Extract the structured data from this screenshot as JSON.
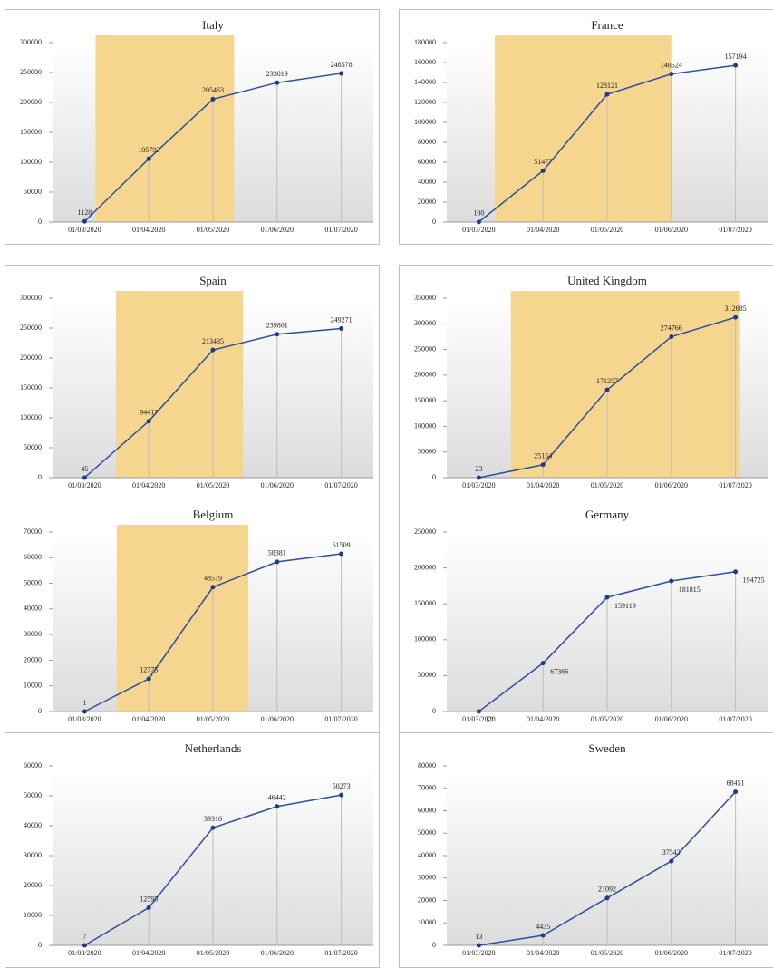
{
  "chart_data": [
    {
      "type": "line",
      "title": "Italy",
      "categories": [
        "01/03/2020",
        "01/04/2020",
        "01/05/2020",
        "01/06/2020",
        "01/07/2020"
      ],
      "values": [
        1128,
        105792,
        205463,
        233019,
        248578
      ],
      "color": "#2e4f9e",
      "ylim": [
        0,
        300000
      ],
      "yticks": [
        0,
        50000,
        100000,
        150000,
        200000,
        250000,
        300000
      ],
      "highlight": {
        "start": 0.17,
        "end": 2.33,
        "color": "#f6d58e"
      },
      "label_position": "above"
    },
    {
      "type": "line",
      "title": "France",
      "categories": [
        "01/03/2020",
        "01/04/2020",
        "01/05/2020",
        "01/06/2020",
        "01/07/2020"
      ],
      "values": [
        100,
        51477,
        128121,
        148524,
        157194
      ],
      "color": "#2e4f9e",
      "ylim": [
        0,
        180000
      ],
      "yticks": [
        0,
        20000,
        40000,
        60000,
        80000,
        100000,
        120000,
        140000,
        160000,
        180000
      ],
      "highlight": {
        "start": 0.25,
        "end": 3.0,
        "color": "#f6d58e"
      },
      "label_position": "above"
    },
    {
      "type": "line",
      "title": "Spain",
      "categories": [
        "01/03/2020",
        "01/04/2020",
        "01/05/2020",
        "01/06/2020",
        "01/07/2020"
      ],
      "values": [
        45,
        94417,
        213435,
        239801,
        249271
      ],
      "color": "#2e4f9e",
      "ylim": [
        0,
        300000
      ],
      "yticks": [
        0,
        50000,
        100000,
        150000,
        200000,
        250000,
        300000
      ],
      "highlight": {
        "start": 0.49,
        "end": 2.47,
        "color": "#f6d58e"
      },
      "label_position": "above"
    },
    {
      "type": "line",
      "title": "United Kingdom",
      "categories": [
        "01/03/2020",
        "01/04/2020",
        "01/05/2020",
        "01/06/2020",
        "01/07/2020"
      ],
      "values": [
        23,
        25154,
        171257,
        274766,
        312685
      ],
      "color": "#2e4f9e",
      "ylim": [
        0,
        350000
      ],
      "yticks": [
        0,
        50000,
        100000,
        150000,
        200000,
        250000,
        300000,
        350000
      ],
      "highlight": {
        "start": 0.5,
        "end": 4.07,
        "color": "#f6d58e"
      },
      "label_position": "above"
    },
    {
      "type": "line",
      "title": "Belgium",
      "categories": [
        "01/03/2020",
        "01/04/2020",
        "01/05/2020",
        "01/06/2020",
        "01/07/2020"
      ],
      "values": [
        1,
        12775,
        48519,
        58381,
        61509
      ],
      "color": "#2e4f9e",
      "ylim": [
        0,
        70000
      ],
      "yticks": [
        0,
        10000,
        20000,
        30000,
        40000,
        50000,
        60000,
        70000
      ],
      "highlight": {
        "start": 0.5,
        "end": 2.55,
        "color": "#f6d58e"
      },
      "label_position": "above"
    },
    {
      "type": "line",
      "title": "Germany",
      "categories": [
        "01/03/2020",
        "01/04/2020",
        "01/05/2020",
        "01/06/2020",
        "01/07/2020"
      ],
      "values": [
        57,
        67366,
        159119,
        181815,
        194725
      ],
      "color": "#2e4f9e",
      "ylim": [
        0,
        250000
      ],
      "yticks": [
        0,
        50000,
        100000,
        150000,
        200000,
        250000
      ],
      "label_position": "below-right"
    },
    {
      "type": "line",
      "title": "Netherlands",
      "categories": [
        "01/03/2020",
        "01/04/2020",
        "01/05/2020",
        "01/06/2020",
        "01/07/2020"
      ],
      "values": [
        7,
        12595,
        39316,
        46442,
        50273
      ],
      "color": "#2e4f9e",
      "ylim": [
        0,
        60000
      ],
      "yticks": [
        0,
        10000,
        20000,
        30000,
        40000,
        50000,
        60000
      ],
      "label_position": "above"
    },
    {
      "type": "line",
      "title": "Sweden",
      "categories": [
        "01/03/2020",
        "01/04/2020",
        "01/05/2020",
        "01/06/2020",
        "01/07/2020"
      ],
      "values": [
        13,
        4435,
        21092,
        37542,
        68451
      ],
      "color": "#2e4f9e",
      "ylim": [
        0,
        80000
      ],
      "yticks": [
        0,
        10000,
        20000,
        30000,
        40000,
        50000,
        60000,
        70000,
        80000
      ],
      "label_position": "above"
    }
  ]
}
